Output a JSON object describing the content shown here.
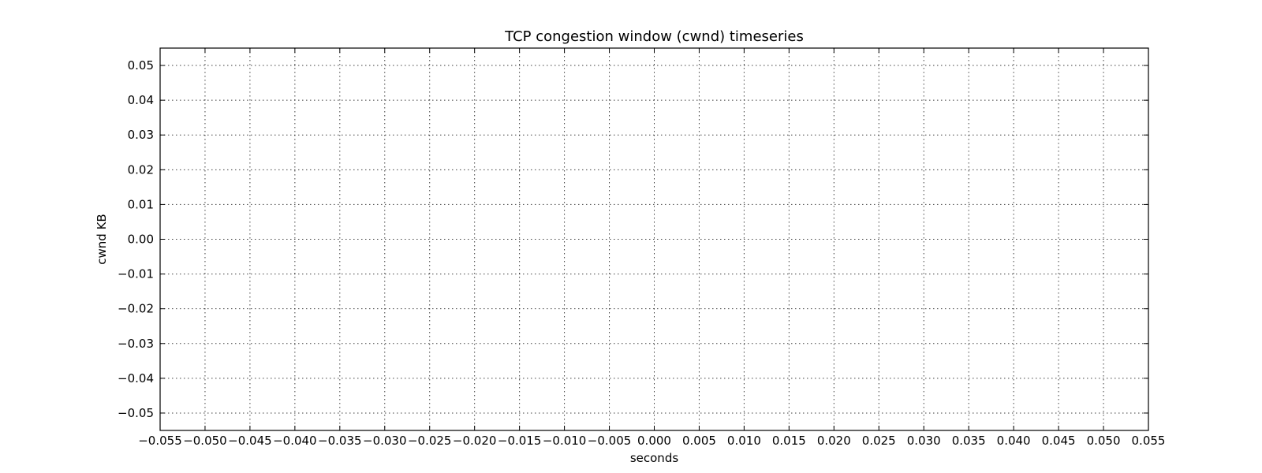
{
  "chart_data": {
    "type": "line",
    "title": "TCP congestion window (cwnd) timeseries",
    "xlabel": "seconds",
    "ylabel": "cwnd KB",
    "xlim": [
      -0.055,
      0.055
    ],
    "ylim": [
      -0.055,
      0.055
    ],
    "x_ticks": [
      -0.055,
      -0.05,
      -0.045,
      -0.04,
      -0.035,
      -0.03,
      -0.025,
      -0.02,
      -0.015,
      -0.01,
      -0.005,
      0.0,
      0.005,
      0.01,
      0.015,
      0.02,
      0.025,
      0.03,
      0.035,
      0.04,
      0.045,
      0.05,
      0.055
    ],
    "x_tick_labels": [
      "−0.055",
      "−0.050",
      "−0.045",
      "−0.040",
      "−0.035",
      "−0.030",
      "−0.025",
      "−0.020",
      "−0.015",
      "−0.010",
      "−0.005",
      "0.000",
      "0.005",
      "0.010",
      "0.015",
      "0.020",
      "0.025",
      "0.030",
      "0.035",
      "0.040",
      "0.045",
      "0.050",
      "0.055"
    ],
    "y_ticks": [
      0.05,
      0.04,
      0.03,
      0.02,
      0.01,
      0.0,
      -0.01,
      -0.02,
      -0.03,
      -0.04,
      -0.05
    ],
    "y_tick_labels": [
      "0.05",
      "0.04",
      "0.03",
      "0.02",
      "0.01",
      "0.00",
      "−0.01",
      "−0.02",
      "−0.03",
      "−0.04",
      "−0.05"
    ],
    "grid": true,
    "series": []
  }
}
